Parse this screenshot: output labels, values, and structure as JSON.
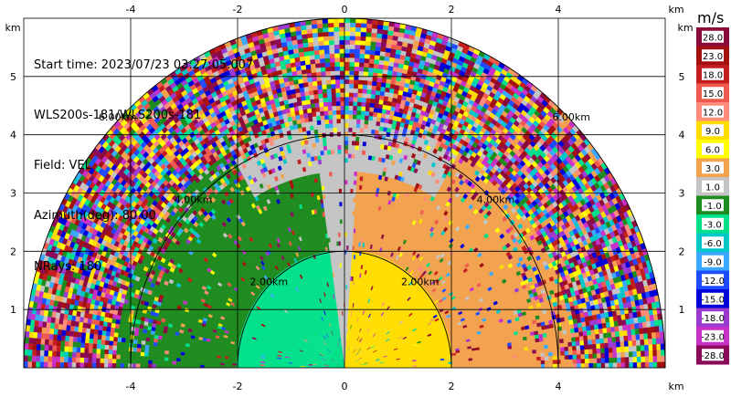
{
  "header": {
    "start_time": "Start time: 2023/07/23 03:27:05.007",
    "instrument": "WLS200s-181/WLS200s-181",
    "field": "Field: VEL",
    "azimuth": "Azimuth(deg): 80.00",
    "nrays": "NRays: 180"
  },
  "chart_data": {
    "type": "heatmap",
    "projection": "polar-sector",
    "x_ticks": [
      -4,
      -2,
      0,
      2,
      4
    ],
    "y_ticks": [
      1,
      2,
      3,
      4,
      5
    ],
    "x_unit": "km",
    "y_unit": "km",
    "xlim": [
      -6.0,
      6.0
    ],
    "ylim": [
      0,
      6.0
    ],
    "max_range_km": 6.0,
    "range_rings_km": [
      2,
      4,
      6
    ],
    "range_ring_labels": [
      "2.00km",
      "4.00km",
      "6.00km"
    ],
    "grid": true,
    "colorbar": {
      "title": "m/s",
      "labels": [
        "28.0",
        "23.0",
        "18.0",
        "15.0",
        "12.0",
        "9.0",
        "6.0",
        "3.0",
        "1.0",
        "-1.0",
        "-3.0",
        "-6.0",
        "-9.0",
        "-12.0",
        "-15.0",
        "-18.0",
        "-23.0",
        "-28.0"
      ],
      "colors": [
        "#8b0a3b",
        "#a31010",
        "#c31d1d",
        "#f05a4e",
        "#ff8c7a",
        "#ffdd00",
        "#ffff00",
        "#f2a24e",
        "#c4c4c4",
        "#1e8b1e",
        "#00e08a",
        "#00c8c8",
        "#3aa8ff",
        "#1e4bff",
        "#0000d8",
        "#9b3ad0",
        "#c830c8",
        "#8b0a5a"
      ]
    },
    "regions": [
      {
        "name": "near-positive",
        "range_km": [
          0,
          2.0
        ],
        "value": 7.5
      },
      {
        "name": "near-negative",
        "range_km": [
          0,
          2.0
        ],
        "value": -4.5
      },
      {
        "name": "mid-positive",
        "range_km": [
          2.0,
          4.3
        ],
        "value": 2.0
      },
      {
        "name": "mid-negative",
        "range_km": [
          2.0,
          4.3
        ],
        "value": -2.0
      },
      {
        "name": "center-band",
        "range_km": [
          0,
          4.3
        ],
        "value": 0.0
      },
      {
        "name": "outer-noise",
        "range_km": [
          4.3,
          6.0
        ],
        "value": null
      }
    ]
  }
}
